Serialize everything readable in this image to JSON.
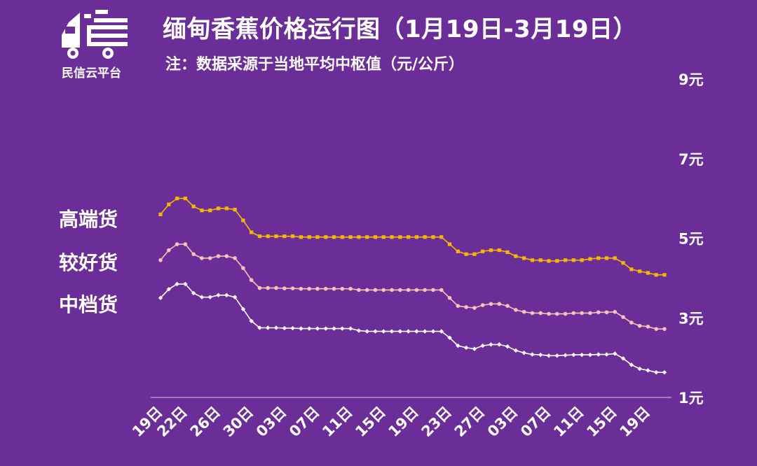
{
  "header": {
    "title": "缅甸香蕉价格运行图（1月19日-3月19日）",
    "subtitle": "注：数据采源于当地平均中枢值（元/公斤）",
    "brand_name": "民信云平台"
  },
  "colors": {
    "background": "#6b2d98",
    "high": "#f5b800",
    "mid": "#f6c3b5",
    "low": "#ffffff"
  },
  "chart_data": {
    "type": "line",
    "title": "缅甸香蕉价格运行图（1月19日-3月19日）",
    "subtitle": "注：数据采源于当地平均中枢值（元/公斤）",
    "ylim": [
      1,
      9
    ],
    "y_ticks": [
      {
        "value": 9,
        "label": "9元"
      },
      {
        "value": 7,
        "label": "7元"
      },
      {
        "value": 5,
        "label": "5元"
      },
      {
        "value": 3,
        "label": "3元"
      },
      {
        "value": 1,
        "label": "1元"
      }
    ],
    "x_ticks": [
      {
        "index": 0,
        "label": "19日"
      },
      {
        "index": 3,
        "label": "22日"
      },
      {
        "index": 7,
        "label": "26日"
      },
      {
        "index": 11,
        "label": "30日"
      },
      {
        "index": 15,
        "label": "03日"
      },
      {
        "index": 19,
        "label": "07日"
      },
      {
        "index": 23,
        "label": "11日"
      },
      {
        "index": 27,
        "label": "15日"
      },
      {
        "index": 31,
        "label": "19日"
      },
      {
        "index": 35,
        "label": "23日"
      },
      {
        "index": 39,
        "label": "27日"
      },
      {
        "index": 43,
        "label": "03日"
      },
      {
        "index": 47,
        "label": "07日"
      },
      {
        "index": 51,
        "label": "11日"
      },
      {
        "index": 55,
        "label": "15日"
      },
      {
        "index": 59,
        "label": "19日"
      }
    ],
    "series": [
      {
        "name": "高端货",
        "color": "#f5b800",
        "marker": "square",
        "values": [
          5.6,
          5.85,
          6.0,
          6.0,
          5.8,
          5.7,
          5.7,
          5.75,
          5.75,
          5.72,
          5.45,
          5.15,
          5.05,
          5.05,
          5.05,
          5.05,
          5.05,
          5.03,
          5.03,
          5.03,
          5.03,
          5.03,
          5.03,
          5.03,
          5.03,
          5.03,
          5.03,
          5.03,
          5.03,
          5.03,
          5.03,
          5.03,
          5.03,
          5.03,
          5.03,
          4.85,
          4.67,
          4.6,
          4.6,
          4.67,
          4.7,
          4.7,
          4.65,
          4.55,
          4.5,
          4.45,
          4.45,
          4.43,
          4.43,
          4.45,
          4.45,
          4.45,
          4.48,
          4.5,
          4.5,
          4.5,
          4.38,
          4.22,
          4.17,
          4.13,
          4.08,
          4.08
        ]
      },
      {
        "name": "较好货",
        "color": "#f6c3b5",
        "marker": "circle",
        "values": [
          4.45,
          4.7,
          4.85,
          4.85,
          4.6,
          4.5,
          4.5,
          4.55,
          4.55,
          4.5,
          4.25,
          3.95,
          3.75,
          3.75,
          3.75,
          3.74,
          3.74,
          3.73,
          3.73,
          3.73,
          3.73,
          3.73,
          3.73,
          3.73,
          3.7,
          3.7,
          3.7,
          3.7,
          3.7,
          3.7,
          3.7,
          3.7,
          3.7,
          3.7,
          3.7,
          3.5,
          3.3,
          3.27,
          3.25,
          3.32,
          3.35,
          3.35,
          3.3,
          3.2,
          3.15,
          3.12,
          3.12,
          3.1,
          3.1,
          3.1,
          3.12,
          3.12,
          3.12,
          3.14,
          3.14,
          3.15,
          3.02,
          2.88,
          2.8,
          2.78,
          2.72,
          2.72
        ]
      },
      {
        "name": "中档货",
        "color": "#ffffff",
        "marker": "diamond",
        "values": [
          3.5,
          3.72,
          3.85,
          3.85,
          3.62,
          3.52,
          3.52,
          3.57,
          3.57,
          3.52,
          3.22,
          2.92,
          2.75,
          2.75,
          2.75,
          2.74,
          2.74,
          2.73,
          2.73,
          2.73,
          2.73,
          2.73,
          2.73,
          2.73,
          2.68,
          2.66,
          2.66,
          2.66,
          2.66,
          2.66,
          2.66,
          2.66,
          2.66,
          2.66,
          2.66,
          2.5,
          2.3,
          2.25,
          2.22,
          2.3,
          2.33,
          2.33,
          2.28,
          2.18,
          2.12,
          2.08,
          2.07,
          2.05,
          2.05,
          2.06,
          2.07,
          2.07,
          2.07,
          2.08,
          2.08,
          2.1,
          1.98,
          1.82,
          1.72,
          1.68,
          1.63,
          1.63
        ]
      }
    ]
  }
}
